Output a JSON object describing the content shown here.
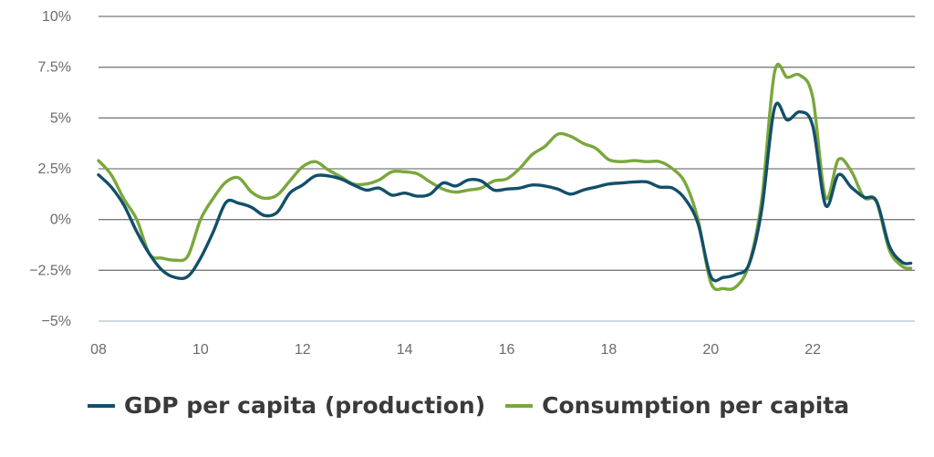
{
  "chart_data": {
    "type": "line",
    "title": "",
    "xlabel": "",
    "ylabel": "",
    "xlim": [
      2008,
      2023.92
    ],
    "ylim": [
      -5,
      10
    ],
    "x_tick_labels": [
      {
        "x": 2008,
        "label": "08"
      },
      {
        "x": 2010,
        "label": "10"
      },
      {
        "x": 2012,
        "label": "12"
      },
      {
        "x": 2014,
        "label": "14"
      },
      {
        "x": 2016,
        "label": "16"
      },
      {
        "x": 2018,
        "label": "18"
      },
      {
        "x": 2020,
        "label": "20"
      },
      {
        "x": 2022,
        "label": "22"
      }
    ],
    "y_tick_labels": [
      {
        "y": 10,
        "label": "10%"
      },
      {
        "y": 7.5,
        "label": "7.5%"
      },
      {
        "y": 5,
        "label": "5%"
      },
      {
        "y": 2.5,
        "label": "2.5%"
      },
      {
        "y": 0,
        "label": "0%"
      },
      {
        "y": -2.5,
        "label": "−2.5%"
      },
      {
        "y": -5,
        "label": "−5%"
      }
    ],
    "grid": true,
    "legend_position": "bottom",
    "series": [
      {
        "name": "GDP per capita (production)",
        "color": "#134f6a",
        "points": [
          [
            2008.0,
            2.2
          ],
          [
            2008.25,
            1.6
          ],
          [
            2008.5,
            0.7
          ],
          [
            2008.75,
            -0.6
          ],
          [
            2009.0,
            -1.7
          ],
          [
            2009.25,
            -2.5
          ],
          [
            2009.5,
            -2.85
          ],
          [
            2009.75,
            -2.8
          ],
          [
            2010.0,
            -1.9
          ],
          [
            2010.25,
            -0.6
          ],
          [
            2010.5,
            0.85
          ],
          [
            2010.75,
            0.8
          ],
          [
            2011.0,
            0.6
          ],
          [
            2011.25,
            0.2
          ],
          [
            2011.5,
            0.35
          ],
          [
            2011.75,
            1.3
          ],
          [
            2012.0,
            1.7
          ],
          [
            2012.25,
            2.15
          ],
          [
            2012.5,
            2.15
          ],
          [
            2012.75,
            2.0
          ],
          [
            2013.0,
            1.7
          ],
          [
            2013.25,
            1.45
          ],
          [
            2013.5,
            1.55
          ],
          [
            2013.75,
            1.2
          ],
          [
            2014.0,
            1.3
          ],
          [
            2014.25,
            1.15
          ],
          [
            2014.5,
            1.25
          ],
          [
            2014.75,
            1.8
          ],
          [
            2015.0,
            1.65
          ],
          [
            2015.25,
            1.95
          ],
          [
            2015.5,
            1.9
          ],
          [
            2015.75,
            1.45
          ],
          [
            2016.0,
            1.5
          ],
          [
            2016.25,
            1.55
          ],
          [
            2016.5,
            1.7
          ],
          [
            2016.75,
            1.65
          ],
          [
            2017.0,
            1.5
          ],
          [
            2017.25,
            1.25
          ],
          [
            2017.5,
            1.45
          ],
          [
            2017.75,
            1.6
          ],
          [
            2018.0,
            1.75
          ],
          [
            2018.25,
            1.8
          ],
          [
            2018.5,
            1.85
          ],
          [
            2018.75,
            1.85
          ],
          [
            2019.0,
            1.6
          ],
          [
            2019.25,
            1.55
          ],
          [
            2019.5,
            1.0
          ],
          [
            2019.75,
            -0.2
          ],
          [
            2020.0,
            -2.8
          ],
          [
            2020.25,
            -2.85
          ],
          [
            2020.5,
            -2.7
          ],
          [
            2020.75,
            -2.2
          ],
          [
            2021.0,
            0.5
          ],
          [
            2021.25,
            5.5
          ],
          [
            2021.5,
            4.9
          ],
          [
            2021.75,
            5.3
          ],
          [
            2022.0,
            4.6
          ],
          [
            2022.25,
            0.7
          ],
          [
            2022.5,
            2.2
          ],
          [
            2022.75,
            1.6
          ],
          [
            2023.0,
            1.1
          ],
          [
            2023.25,
            0.9
          ],
          [
            2023.5,
            -1.3
          ],
          [
            2023.75,
            -2.1
          ],
          [
            2023.92,
            -2.15
          ]
        ]
      },
      {
        "name": "Consumption per capita",
        "color": "#7aa73b",
        "points": [
          [
            2008.0,
            2.9
          ],
          [
            2008.25,
            2.2
          ],
          [
            2008.5,
            1.0
          ],
          [
            2008.75,
            0.0
          ],
          [
            2009.0,
            -1.7
          ],
          [
            2009.25,
            -1.9
          ],
          [
            2009.5,
            -2.0
          ],
          [
            2009.75,
            -1.8
          ],
          [
            2010.0,
            0.0
          ],
          [
            2010.25,
            1.05
          ],
          [
            2010.5,
            1.85
          ],
          [
            2010.75,
            2.05
          ],
          [
            2011.0,
            1.35
          ],
          [
            2011.25,
            1.05
          ],
          [
            2011.5,
            1.2
          ],
          [
            2011.75,
            1.9
          ],
          [
            2012.0,
            2.6
          ],
          [
            2012.25,
            2.85
          ],
          [
            2012.5,
            2.45
          ],
          [
            2012.75,
            2.1
          ],
          [
            2013.0,
            1.75
          ],
          [
            2013.25,
            1.75
          ],
          [
            2013.5,
            1.95
          ],
          [
            2013.75,
            2.35
          ],
          [
            2014.0,
            2.35
          ],
          [
            2014.25,
            2.25
          ],
          [
            2014.5,
            1.85
          ],
          [
            2014.75,
            1.5
          ],
          [
            2015.0,
            1.35
          ],
          [
            2015.25,
            1.45
          ],
          [
            2015.5,
            1.55
          ],
          [
            2015.75,
            1.9
          ],
          [
            2016.0,
            2.0
          ],
          [
            2016.25,
            2.5
          ],
          [
            2016.5,
            3.2
          ],
          [
            2016.75,
            3.6
          ],
          [
            2017.0,
            4.2
          ],
          [
            2017.25,
            4.1
          ],
          [
            2017.5,
            3.75
          ],
          [
            2017.75,
            3.5
          ],
          [
            2018.0,
            2.95
          ],
          [
            2018.25,
            2.85
          ],
          [
            2018.5,
            2.9
          ],
          [
            2018.75,
            2.85
          ],
          [
            2019.0,
            2.85
          ],
          [
            2019.25,
            2.5
          ],
          [
            2019.5,
            1.8
          ],
          [
            2019.75,
            0.0
          ],
          [
            2020.0,
            -3.1
          ],
          [
            2020.25,
            -3.4
          ],
          [
            2020.5,
            -3.3
          ],
          [
            2020.75,
            -2.2
          ],
          [
            2021.0,
            1.0
          ],
          [
            2021.25,
            7.25
          ],
          [
            2021.5,
            7.0
          ],
          [
            2021.75,
            7.1
          ],
          [
            2022.0,
            6.0
          ],
          [
            2022.25,
            1.1
          ],
          [
            2022.5,
            2.95
          ],
          [
            2022.75,
            2.4
          ],
          [
            2023.0,
            1.1
          ],
          [
            2023.25,
            0.85
          ],
          [
            2023.5,
            -1.5
          ],
          [
            2023.75,
            -2.3
          ],
          [
            2023.92,
            -2.4
          ]
        ]
      }
    ]
  }
}
